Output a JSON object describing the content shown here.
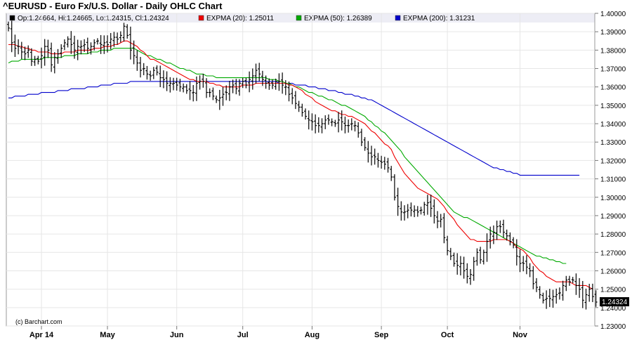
{
  "chart_data": {
    "type": "ohlc",
    "title": "^EURUSD - Euro Fx/U.S. Dollar - Daily OHLC Chart",
    "legend": [
      {
        "key": "ohlc",
        "text": "Op:1.24664, Hi:1.24665, Lo:1.24315, Cl:1.24324",
        "color": "#000000"
      },
      {
        "key": "ema20",
        "text": "EXPMA (20): 1.25011",
        "color": "#ee0000"
      },
      {
        "key": "ema50",
        "text": "EXPMA (50): 1.26389",
        "color": "#00aa00"
      },
      {
        "key": "ema200",
        "text": "EXPMA (200): 1.31231",
        "color": "#0000cc"
      }
    ],
    "credit": "(c) Barchart.com",
    "last_value_label": "1.24324",
    "y_axis": {
      "ylim": [
        1.23,
        1.4
      ],
      "ticks": [
        "1.40000",
        "1.39000",
        "1.38000",
        "1.37000",
        "1.36000",
        "1.35000",
        "1.34000",
        "1.33000",
        "1.32000",
        "1.31000",
        "1.30000",
        "1.29000",
        "1.28000",
        "1.27000",
        "1.26000",
        "1.25000",
        "1.24000",
        "1.23000"
      ]
    },
    "x_axis": {
      "labels": [
        {
          "label": "Apr 14",
          "index": 10
        },
        {
          "label": "May",
          "index": 30
        },
        {
          "label": "Jun",
          "index": 51
        },
        {
          "label": "Jul",
          "index": 71
        },
        {
          "label": "Aug",
          "index": 92
        },
        {
          "label": "Sep",
          "index": 113
        },
        {
          "label": "Oct",
          "index": 133
        },
        {
          "label": "Nov",
          "index": 155
        }
      ]
    },
    "bar_count": 174,
    "close_series": [
      1.392,
      1.384,
      1.381,
      1.382,
      1.379,
      1.378,
      1.38,
      1.374,
      1.375,
      1.374,
      1.377,
      1.382,
      1.38,
      1.372,
      1.376,
      1.378,
      1.381,
      1.384,
      1.386,
      1.383,
      1.38,
      1.382,
      1.382,
      1.383,
      1.381,
      1.382,
      1.384,
      1.385,
      1.383,
      1.384,
      1.383,
      1.386,
      1.387,
      1.386,
      1.388,
      1.393,
      1.388,
      1.38,
      1.377,
      1.373,
      1.369,
      1.37,
      1.367,
      1.366,
      1.369,
      1.368,
      1.365,
      1.364,
      1.362,
      1.362,
      1.362,
      1.361,
      1.36,
      1.36,
      1.358,
      1.358,
      1.357,
      1.362,
      1.363,
      1.363,
      1.357,
      1.357,
      1.355,
      1.353,
      1.354,
      1.356,
      1.357,
      1.36,
      1.361,
      1.359,
      1.362,
      1.363,
      1.361,
      1.364,
      1.366,
      1.369,
      1.367,
      1.364,
      1.362,
      1.361,
      1.361,
      1.363,
      1.363,
      1.361,
      1.36,
      1.356,
      1.354,
      1.351,
      1.349,
      1.346,
      1.344,
      1.342,
      1.341,
      1.339,
      1.339,
      1.34,
      1.342,
      1.342,
      1.341,
      1.34,
      1.342,
      1.341,
      1.339,
      1.339,
      1.34,
      1.339,
      1.335,
      1.33,
      1.327,
      1.324,
      1.322,
      1.322,
      1.32,
      1.319,
      1.318,
      1.316,
      1.311,
      1.3,
      1.295,
      1.292,
      1.292,
      1.293,
      1.293,
      1.293,
      1.292,
      1.293,
      1.296,
      1.297,
      1.294,
      1.29,
      1.287,
      1.288,
      1.278,
      1.271,
      1.268,
      1.264,
      1.263,
      1.264,
      1.26,
      1.257,
      1.258,
      1.265,
      1.27,
      1.266,
      1.27,
      1.276,
      1.28,
      1.281,
      1.284,
      1.284,
      1.281,
      1.279,
      1.276,
      1.274,
      1.268,
      1.264,
      1.264,
      1.262,
      1.26,
      1.253,
      1.251,
      1.247,
      1.244,
      1.245,
      1.245,
      1.246,
      1.247,
      1.248,
      1.252,
      1.255,
      1.254,
      1.255,
      1.252,
      1.25,
      1.244,
      1.247,
      1.25,
      1.246,
      1.243
    ],
    "ema20": [
      1.383,
      1.383,
      1.383,
      1.382,
      1.382,
      1.381,
      1.381,
      1.38,
      1.38,
      1.379,
      1.379,
      1.379,
      1.379,
      1.378,
      1.378,
      1.378,
      1.378,
      1.379,
      1.379,
      1.379,
      1.379,
      1.38,
      1.38,
      1.38,
      1.38,
      1.38,
      1.381,
      1.381,
      1.381,
      1.382,
      1.382,
      1.382,
      1.383,
      1.383,
      1.384,
      1.385,
      1.385,
      1.384,
      1.383,
      1.382,
      1.38,
      1.379,
      1.377,
      1.375,
      1.375,
      1.374,
      1.373,
      1.372,
      1.371,
      1.37,
      1.369,
      1.368,
      1.367,
      1.366,
      1.365,
      1.364,
      1.364,
      1.363,
      1.363,
      1.363,
      1.363,
      1.362,
      1.362,
      1.361,
      1.361,
      1.36,
      1.36,
      1.36,
      1.36,
      1.36,
      1.36,
      1.361,
      1.361,
      1.361,
      1.361,
      1.362,
      1.362,
      1.362,
      1.362,
      1.362,
      1.362,
      1.362,
      1.362,
      1.362,
      1.362,
      1.361,
      1.361,
      1.36,
      1.359,
      1.358,
      1.356,
      1.355,
      1.354,
      1.352,
      1.351,
      1.35,
      1.349,
      1.348,
      1.347,
      1.347,
      1.346,
      1.345,
      1.345,
      1.344,
      1.344,
      1.343,
      1.342,
      1.341,
      1.34,
      1.338,
      1.336,
      1.335,
      1.333,
      1.331,
      1.329,
      1.328,
      1.326,
      1.322,
      1.319,
      1.316,
      1.313,
      1.311,
      1.309,
      1.307,
      1.305,
      1.304,
      1.303,
      1.302,
      1.301,
      1.3,
      1.299,
      1.297,
      1.295,
      1.292,
      1.29,
      1.288,
      1.285,
      1.283,
      1.281,
      1.279,
      1.277,
      1.277,
      1.276,
      1.276,
      1.276,
      1.276,
      1.276,
      1.277,
      1.277,
      1.277,
      1.277,
      1.277,
      1.276,
      1.275,
      1.273,
      1.272,
      1.271,
      1.269,
      1.267,
      1.264,
      1.262,
      1.26,
      1.259,
      1.257,
      1.256,
      1.255,
      1.254,
      1.254,
      1.254,
      1.254,
      1.254,
      1.253,
      1.252,
      1.252,
      1.252,
      1.252,
      1.251,
      1.25
    ],
    "ema50": [
      1.373,
      1.374,
      1.374,
      1.374,
      1.375,
      1.375,
      1.375,
      1.375,
      1.375,
      1.375,
      1.375,
      1.376,
      1.376,
      1.376,
      1.376,
      1.376,
      1.376,
      1.377,
      1.377,
      1.377,
      1.377,
      1.378,
      1.378,
      1.378,
      1.378,
      1.379,
      1.379,
      1.379,
      1.38,
      1.38,
      1.38,
      1.38,
      1.381,
      1.381,
      1.381,
      1.381,
      1.381,
      1.381,
      1.381,
      1.38,
      1.379,
      1.378,
      1.377,
      1.377,
      1.376,
      1.375,
      1.375,
      1.374,
      1.373,
      1.373,
      1.372,
      1.371,
      1.37,
      1.37,
      1.369,
      1.369,
      1.368,
      1.367,
      1.367,
      1.367,
      1.366,
      1.366,
      1.366,
      1.365,
      1.365,
      1.365,
      1.365,
      1.365,
      1.365,
      1.365,
      1.365,
      1.365,
      1.365,
      1.365,
      1.365,
      1.365,
      1.365,
      1.365,
      1.365,
      1.364,
      1.364,
      1.364,
      1.363,
      1.363,
      1.362,
      1.362,
      1.361,
      1.36,
      1.36,
      1.359,
      1.358,
      1.357,
      1.357,
      1.356,
      1.355,
      1.355,
      1.354,
      1.353,
      1.353,
      1.352,
      1.351,
      1.35,
      1.35,
      1.349,
      1.348,
      1.347,
      1.346,
      1.345,
      1.344,
      1.342,
      1.341,
      1.339,
      1.338,
      1.336,
      1.335,
      1.333,
      1.331,
      1.329,
      1.327,
      1.325,
      1.322,
      1.32,
      1.318,
      1.316,
      1.314,
      1.312,
      1.31,
      1.308,
      1.306,
      1.304,
      1.302,
      1.3,
      1.298,
      1.296,
      1.294,
      1.292,
      1.291,
      1.29,
      1.289,
      1.289,
      1.288,
      1.287,
      1.286,
      1.285,
      1.284,
      1.283,
      1.282,
      1.281,
      1.28,
      1.279,
      1.278,
      1.277,
      1.276,
      1.275,
      1.274,
      1.273,
      1.272,
      1.271,
      1.27,
      1.269,
      1.268,
      1.268,
      1.267,
      1.267,
      1.266,
      1.266,
      1.265,
      1.265,
      1.264,
      1.264
    ],
    "ema200": [
      1.354,
      1.354,
      1.355,
      1.355,
      1.355,
      1.355,
      1.356,
      1.356,
      1.356,
      1.356,
      1.357,
      1.357,
      1.357,
      1.357,
      1.357,
      1.358,
      1.358,
      1.358,
      1.358,
      1.359,
      1.359,
      1.359,
      1.359,
      1.359,
      1.36,
      1.36,
      1.36,
      1.36,
      1.361,
      1.361,
      1.361,
      1.361,
      1.362,
      1.362,
      1.362,
      1.362,
      1.362,
      1.363,
      1.363,
      1.363,
      1.363,
      1.363,
      1.363,
      1.363,
      1.363,
      1.363,
      1.363,
      1.363,
      1.363,
      1.363,
      1.363,
      1.363,
      1.363,
      1.363,
      1.363,
      1.363,
      1.363,
      1.363,
      1.363,
      1.363,
      1.363,
      1.363,
      1.363,
      1.363,
      1.363,
      1.363,
      1.363,
      1.363,
      1.363,
      1.363,
      1.363,
      1.363,
      1.363,
      1.363,
      1.363,
      1.363,
      1.363,
      1.363,
      1.363,
      1.363,
      1.363,
      1.363,
      1.362,
      1.362,
      1.362,
      1.362,
      1.362,
      1.361,
      1.361,
      1.361,
      1.361,
      1.36,
      1.36,
      1.36,
      1.359,
      1.359,
      1.359,
      1.358,
      1.358,
      1.358,
      1.357,
      1.357,
      1.356,
      1.356,
      1.356,
      1.355,
      1.355,
      1.354,
      1.354,
      1.353,
      1.353,
      1.352,
      1.351,
      1.35,
      1.349,
      1.348,
      1.347,
      1.346,
      1.345,
      1.344,
      1.343,
      1.342,
      1.341,
      1.34,
      1.339,
      1.338,
      1.337,
      1.336,
      1.335,
      1.334,
      1.333,
      1.332,
      1.331,
      1.33,
      1.329,
      1.328,
      1.327,
      1.326,
      1.325,
      1.324,
      1.323,
      1.322,
      1.321,
      1.32,
      1.319,
      1.318,
      1.317,
      1.316,
      1.316,
      1.315,
      1.315,
      1.314,
      1.314,
      1.313,
      1.313,
      1.312,
      1.312,
      1.312,
      1.312,
      1.312,
      1.312,
      1.312,
      1.312,
      1.312,
      1.312,
      1.312,
      1.312,
      1.312,
      1.312,
      1.312,
      1.312,
      1.312,
      1.312,
      1.312
    ]
  }
}
